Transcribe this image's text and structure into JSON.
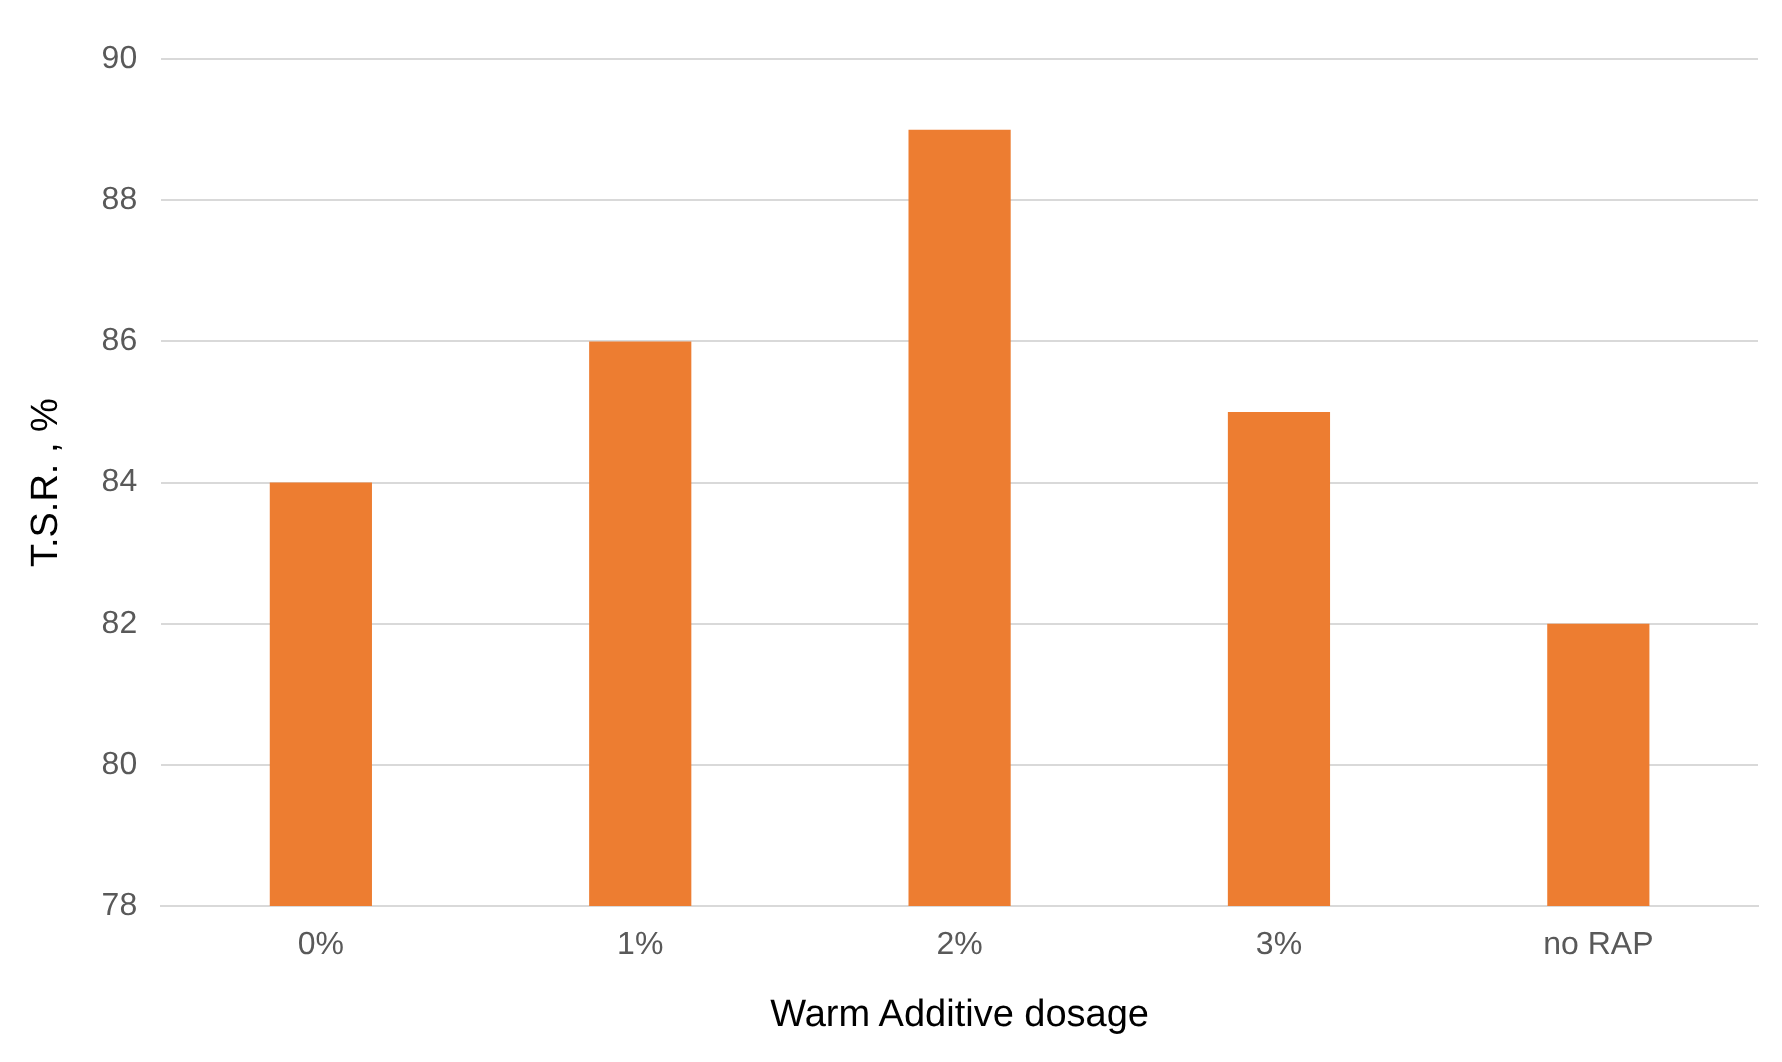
{
  "chart_data": {
    "type": "bar",
    "xlabel": "Warm Additive dosage",
    "ylabel": "T.S.R. , %",
    "categories": [
      "0%",
      "1%",
      "2%",
      "3%",
      "no RAP"
    ],
    "values": [
      84,
      86,
      89,
      85,
      82
    ],
    "color": "#ed7d31",
    "ylim": [
      78,
      90
    ],
    "yticks": [
      78,
      80,
      82,
      84,
      86,
      88,
      90
    ],
    "grid": "y"
  }
}
